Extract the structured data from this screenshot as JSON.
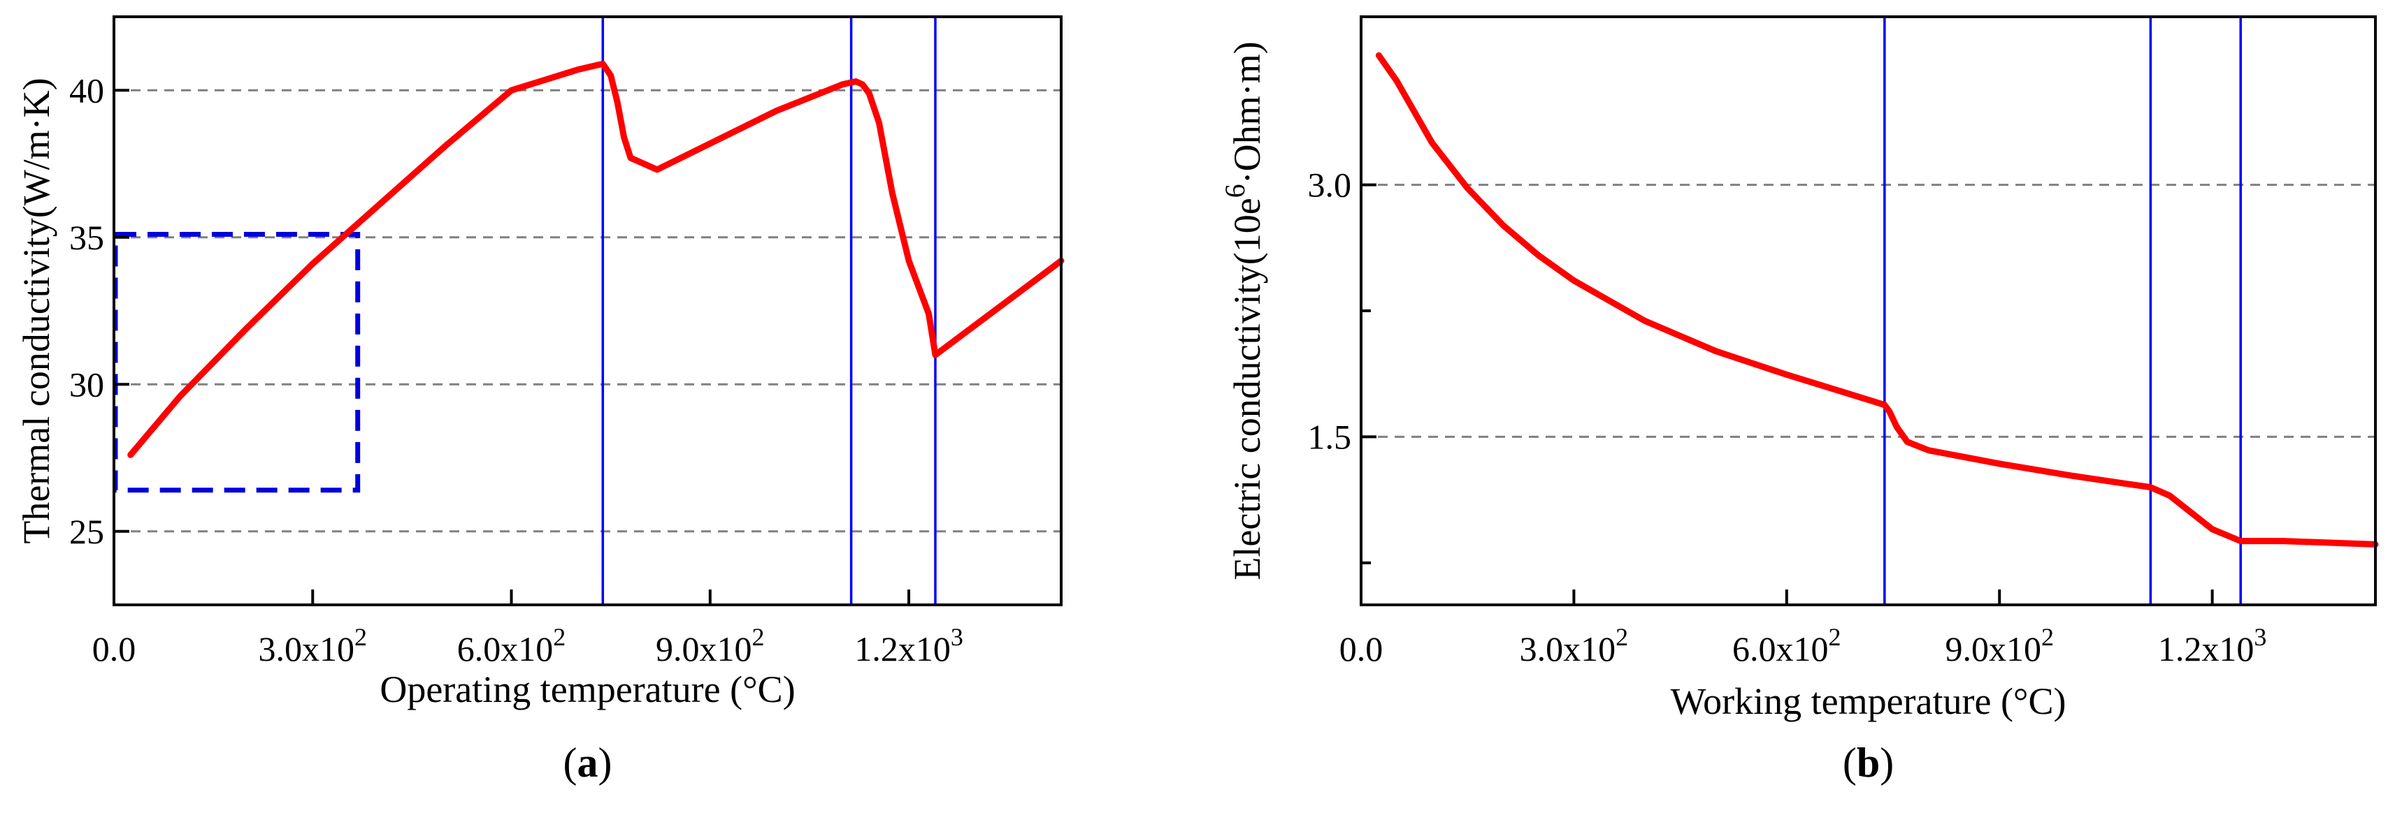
{
  "chart_data": [
    {
      "type": "line",
      "panel": "(a)",
      "panel_letter": "a",
      "xlabel": "Operating temperature (°C)",
      "ylabel": "Thermal conductivity(W/m·K)",
      "xlim": [
        0,
        1430
      ],
      "ylim": [
        22.5,
        42.5
      ],
      "x_ticks": [
        0,
        300,
        600,
        900,
        1200
      ],
      "x_tick_labels": [
        {
          "base": "0.0",
          "exp": ""
        },
        {
          "base": "3.0x10",
          "exp": "2"
        },
        {
          "base": "6.0x10",
          "exp": "2"
        },
        {
          "base": "9.0x10",
          "exp": "2"
        },
        {
          "base": "1.2x10",
          "exp": "3"
        }
      ],
      "y_ticks": [
        25,
        30,
        35,
        40
      ],
      "y_tick_labels": [
        "25",
        "30",
        "35",
        "40"
      ],
      "grid": "horizontal dashed",
      "vertical_lines": [
        738,
        1113,
        1240
      ],
      "highlight_box": {
        "x": [
          0,
          368
        ],
        "y": [
          26.4,
          35.1
        ]
      },
      "colors": {
        "series": "#ff0000",
        "vlines": "#0000ff",
        "box": "#0000dd",
        "grid": "#808080"
      },
      "series": [
        {
          "x": [
            25,
            100,
            200,
            300,
            400,
            500,
            600,
            700,
            738,
            750,
            760,
            770,
            780,
            790,
            820,
            1000,
            1100,
            1120,
            1130,
            1140,
            1155,
            1175,
            1200,
            1230,
            1240,
            1430
          ],
          "y": [
            27.6,
            29.6,
            31.9,
            34.1,
            36.1,
            38.1,
            40.0,
            40.7,
            40.9,
            40.5,
            39.6,
            38.4,
            37.7,
            37.6,
            37.3,
            39.3,
            40.2,
            40.3,
            40.2,
            39.9,
            38.9,
            36.5,
            34.2,
            32.4,
            31.0,
            34.2
          ]
        }
      ]
    },
    {
      "type": "line",
      "panel": "(b)",
      "panel_letter": "b",
      "xlabel": "Working temperature (°C)",
      "ylabel_parts": [
        "Electric conductivity(10e",
        "6",
        "·Ohm·m)"
      ],
      "xlim": [
        0,
        1430
      ],
      "ylim": [
        0.5,
        4.0
      ],
      "x_ticks": [
        0,
        300,
        600,
        900,
        1200
      ],
      "x_tick_labels": [
        {
          "base": "0.0",
          "exp": ""
        },
        {
          "base": "3.0x10",
          "exp": "2"
        },
        {
          "base": "6.0x10",
          "exp": "2"
        },
        {
          "base": "9.0x10",
          "exp": "2"
        },
        {
          "base": "1.2x10",
          "exp": "3"
        }
      ],
      "y_ticks": [
        1.5,
        3.0
      ],
      "y_tick_labels": [
        "1.5",
        "3.0"
      ],
      "minor_y_ticks": [
        0.75,
        2.25
      ],
      "grid": "horizontal dashed",
      "vertical_lines": [
        738,
        1113,
        1240
      ],
      "colors": {
        "series": "#ff0000",
        "vlines": "#0000ff",
        "grid": "#808080"
      },
      "series": [
        {
          "x": [
            25,
            50,
            100,
            150,
            200,
            250,
            300,
            400,
            500,
            600,
            700,
            738,
            745,
            755,
            770,
            800,
            900,
            1000,
            1080,
            1113,
            1140,
            1170,
            1200,
            1240,
            1300,
            1430
          ],
          "y": [
            3.77,
            3.62,
            3.25,
            2.98,
            2.76,
            2.58,
            2.43,
            2.19,
            2.01,
            1.87,
            1.74,
            1.69,
            1.65,
            1.56,
            1.47,
            1.42,
            1.34,
            1.27,
            1.22,
            1.2,
            1.15,
            1.05,
            0.95,
            0.88,
            0.88,
            0.86
          ]
        }
      ]
    }
  ]
}
